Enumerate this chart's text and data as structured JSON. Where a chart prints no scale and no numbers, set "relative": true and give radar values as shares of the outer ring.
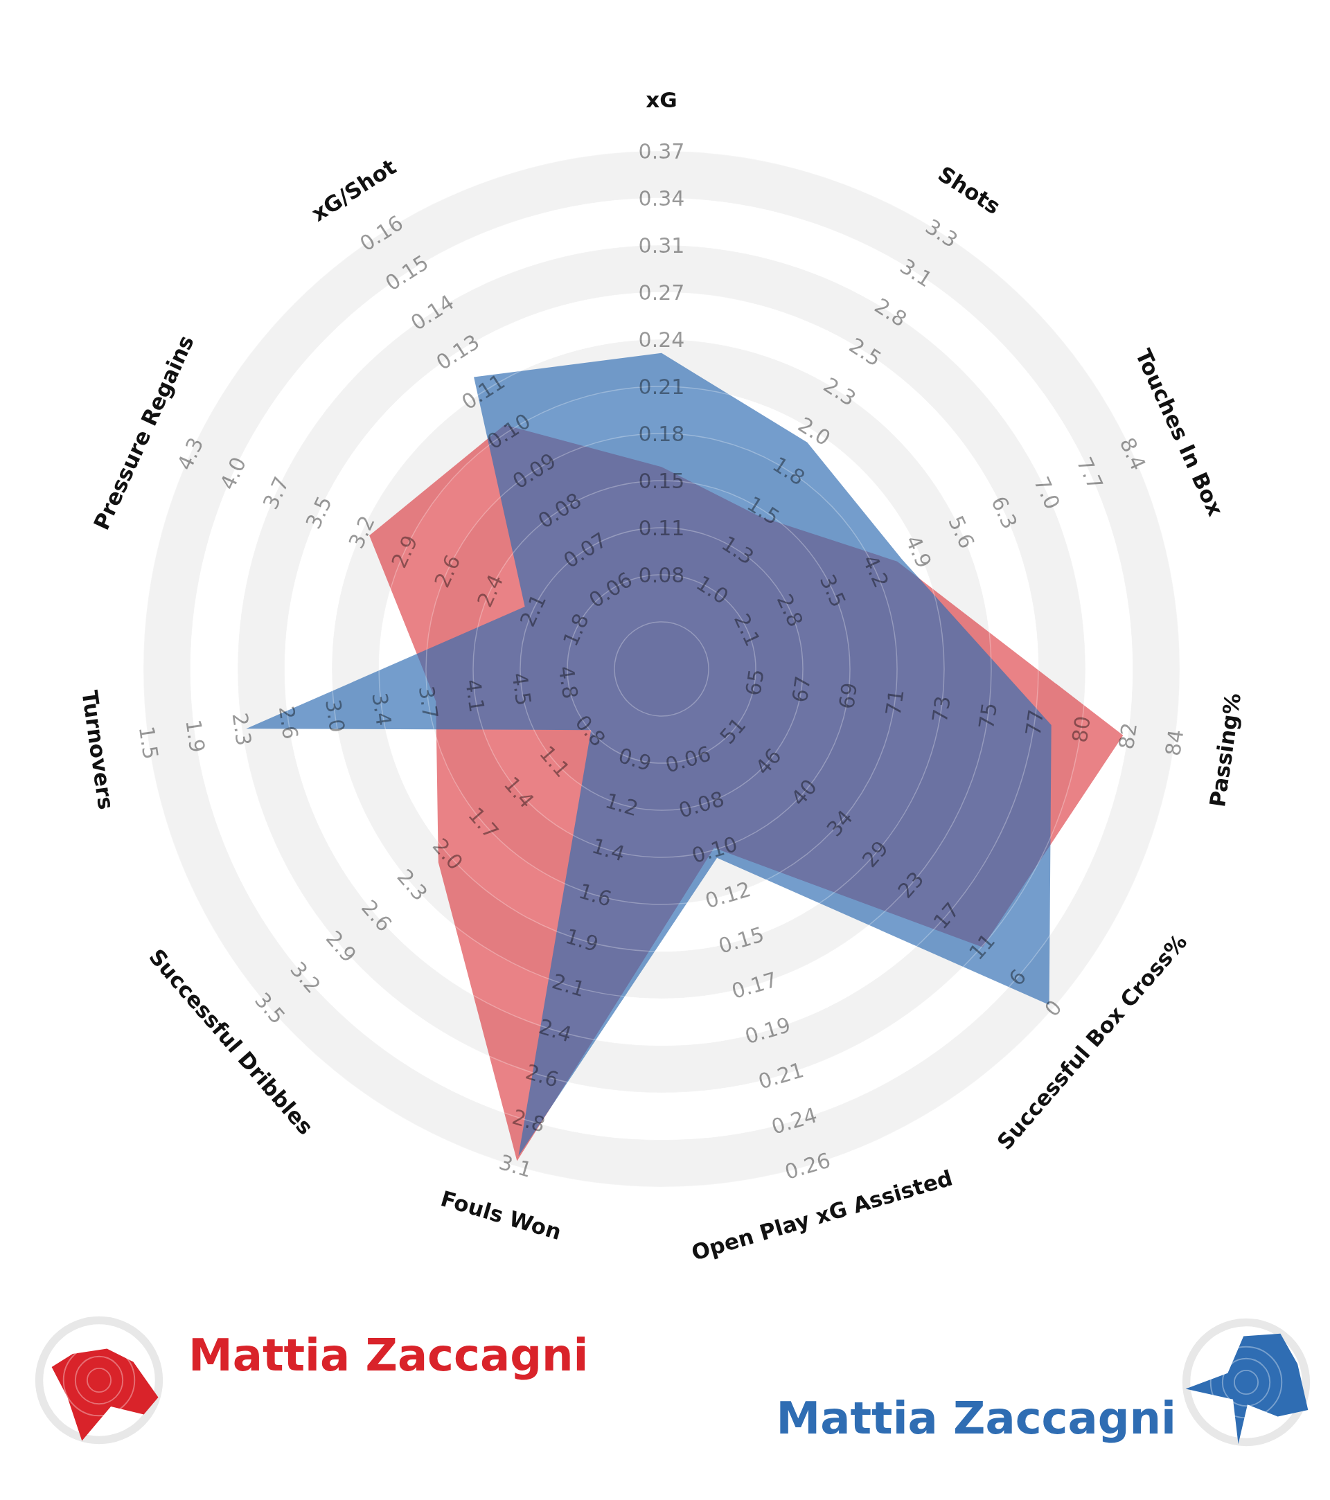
{
  "chart_data": {
    "type": "radar",
    "relative": true,
    "grid": true,
    "legend": "bottom",
    "categories": [
      "xG",
      "Shots",
      "Touches In Box",
      "Passing%",
      "Successful Box Cross%",
      "Open Play xG Assisted",
      "Fouls Won",
      "Successful Dribbles",
      "Turnovers",
      "Pressure Regains",
      "xG/Shot"
    ],
    "series": [
      {
        "name": "Mattia Zaccagni",
        "color": "#d9232a",
        "values": [
          0.39,
          0.35,
          0.5,
          0.9,
          0.82,
          0.36,
          0.99,
          0.57,
          0.44,
          0.62,
          0.56
        ]
      },
      {
        "name": "Mattia Zaccagni",
        "color": "#2f6db3",
        "values": [
          0.61,
          0.52,
          0.51,
          0.76,
          0.99,
          0.38,
          0.98,
          0.18,
          0.81,
          0.29,
          0.67
        ]
      }
    ],
    "annotations": [
      "0.08",
      "0.11",
      "0.15",
      "0.18",
      "0.21",
      "0.24",
      "0.27",
      "0.31",
      "0.34",
      "0.37",
      "1.0",
      "1.3",
      "1.5",
      "1.8",
      "2.0",
      "2.3",
      "2.5",
      "2.8",
      "3.1",
      "3.3",
      "2.1",
      "2.8",
      "3.5",
      "4.2",
      "4.9",
      "5.6",
      "6.3",
      "7.0",
      "7.7",
      "8.4",
      "65",
      "67",
      "69",
      "71",
      "73",
      "75",
      "77",
      "80",
      "82",
      "84",
      "51",
      "46",
      "40",
      "34",
      "29",
      "23",
      "17",
      "11",
      "6",
      "0",
      "0.06",
      "0.08",
      "0.10",
      "0.12",
      "0.15",
      "0.17",
      "0.19",
      "0.21",
      "0.24",
      "0.26",
      "0.9",
      "1.2",
      "1.4",
      "1.6",
      "1.9",
      "2.1",
      "2.4",
      "2.6",
      "2.8",
      "3.1",
      "0.8",
      "1.1",
      "1.4",
      "1.7",
      "2.0",
      "2.3",
      "2.6",
      "2.9",
      "3.2",
      "3.5",
      "4.8",
      "4.5",
      "4.1",
      "3.7",
      "3.4",
      "3.0",
      "2.6",
      "2.3",
      "1.9",
      "1.5",
      "1.8",
      "2.1",
      "2.4",
      "2.6",
      "2.9",
      "3.2",
      "3.5",
      "3.7",
      "4.0",
      "4.3",
      "0.06",
      "0.07",
      "0.08",
      "0.09",
      "0.10",
      "0.11",
      "0.13",
      "0.14",
      "0.15",
      "0.16"
    ]
  }
}
